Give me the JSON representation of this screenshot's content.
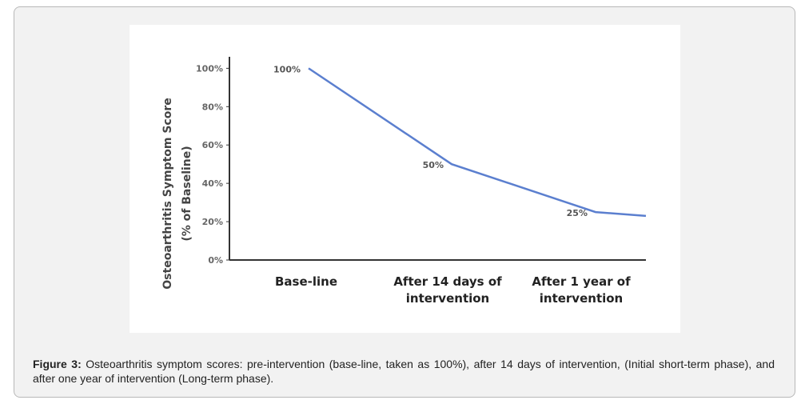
{
  "chart_data": {
    "type": "line",
    "ylabel": [
      "Osteoarthritis Symptom Score",
      "(% of Baseline)"
    ],
    "categories": [
      "Base-line",
      "After 14 days of intervention",
      "After 1 year of intervention",
      null
    ],
    "values": [
      100,
      50,
      25,
      23
    ],
    "value_labels": [
      "100%",
      "50%",
      "25%",
      null
    ],
    "color": "#5b7fcf",
    "ylim": [
      0,
      106
    ],
    "yticks": [
      {
        "value": 0,
        "label": "0%"
      },
      {
        "value": 20,
        "label": "20%"
      },
      {
        "value": 40,
        "label": "40%"
      },
      {
        "value": 60,
        "label": "60%"
      },
      {
        "value": 80,
        "label": "80%"
      },
      {
        "value": 100,
        "label": "100%"
      }
    ]
  },
  "caption": {
    "label": "Figure 3:",
    "text": "Osteoarthritis symptom scores: pre-intervention (base-line, taken as 100%), after 14 days of intervention, (Initial short-term phase), and after one year of intervention (Long-term phase)."
  }
}
